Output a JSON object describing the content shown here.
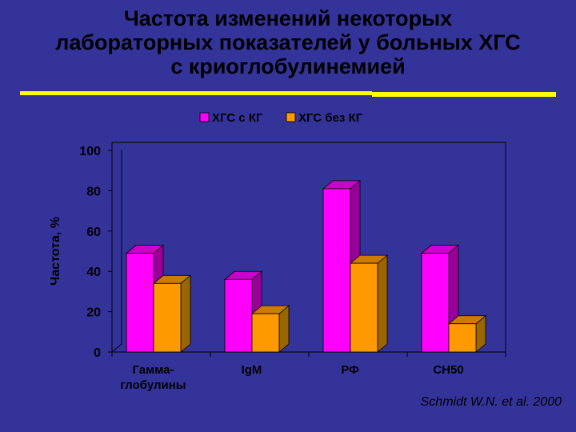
{
  "title_lines": [
    "Частота изменений некоторых",
    "лабораторных показателей у больных ХГС",
    "с криоглобулинемией"
  ],
  "citation": "Schmidt W.N. et al. 2000",
  "colors": {
    "background": "#33339a",
    "series1_front": "#ff00ff",
    "series1_side": "#990099",
    "series1_top": "#cc00cc",
    "series2_front": "#ff9900",
    "series2_side": "#996600",
    "series2_top": "#cc7a00",
    "title_rule": "#ffff00"
  },
  "chart_data": {
    "type": "bar",
    "categories": [
      "Гамма-\nглобулины",
      "IgM",
      "РФ",
      "CH50"
    ],
    "series": [
      {
        "name": "ХГС с КГ",
        "values": [
          49,
          36,
          81,
          49
        ]
      },
      {
        "name": "ХГС без КГ",
        "values": [
          34,
          19,
          44,
          14
        ]
      }
    ],
    "ylabel": "Частота, %",
    "ylim": [
      0,
      100
    ],
    "yticks": [
      0,
      20,
      40,
      60,
      80,
      100
    ],
    "grid": false,
    "legend": "top"
  }
}
